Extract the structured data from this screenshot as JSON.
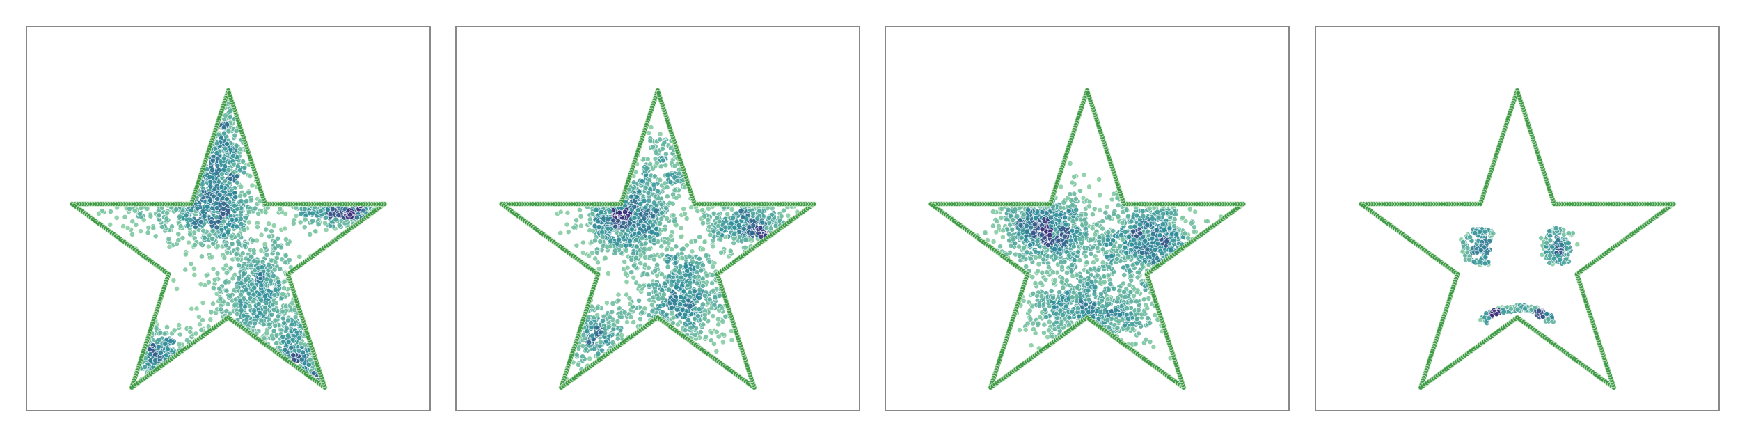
{
  "chart_data": [
    {
      "type": "scatter",
      "panel": 1,
      "title": "",
      "xlabel": "",
      "ylabel": "",
      "grid": false,
      "legend": "none",
      "outline": "star",
      "colors": {
        "outline": "#3f9a45",
        "density_low": "#8fd3a4",
        "density_mid": "#2f8e9a",
        "density_high": "#3b2d7a"
      },
      "clusters": [
        {
          "x": -0.05,
          "y": 0.62,
          "sx": 0.1,
          "sy": 0.32,
          "n": 520
        },
        {
          "x": -0.18,
          "y": 0.28,
          "sx": 0.22,
          "sy": 0.1,
          "n": 420
        },
        {
          "x": 0.72,
          "y": 0.3,
          "sx": 0.16,
          "sy": 0.06,
          "n": 300
        },
        {
          "x": 0.18,
          "y": -0.25,
          "sx": 0.16,
          "sy": 0.2,
          "n": 560
        },
        {
          "x": 0.42,
          "y": -0.72,
          "sx": 0.1,
          "sy": 0.16,
          "n": 220
        },
        {
          "x": -0.45,
          "y": -0.62,
          "sx": 0.14,
          "sy": 0.1,
          "n": 200
        }
      ]
    },
    {
      "type": "scatter",
      "panel": 2,
      "title": "",
      "xlabel": "",
      "ylabel": "",
      "grid": false,
      "legend": "none",
      "outline": "star",
      "colors": {
        "outline": "#3f9a45",
        "density_low": "#8fd3a4",
        "density_mid": "#2f8e9a",
        "density_high": "#3b2d7a"
      },
      "clusters": [
        {
          "x": -0.18,
          "y": 0.22,
          "sx": 0.14,
          "sy": 0.12,
          "n": 620
        },
        {
          "x": 0.55,
          "y": 0.18,
          "sx": 0.14,
          "sy": 0.08,
          "n": 320
        },
        {
          "x": 0.15,
          "y": -0.25,
          "sx": 0.14,
          "sy": 0.16,
          "n": 520
        },
        {
          "x": -0.38,
          "y": -0.48,
          "sx": 0.16,
          "sy": 0.1,
          "n": 220
        },
        {
          "x": 0.05,
          "y": 0.55,
          "sx": 0.08,
          "sy": 0.14,
          "n": 140
        }
      ]
    },
    {
      "type": "scatter",
      "panel": 3,
      "title": "",
      "xlabel": "",
      "ylabel": "",
      "grid": false,
      "legend": "none",
      "outline": "star",
      "colors": {
        "outline": "#3f9a45",
        "density_low": "#8fd3a4",
        "density_mid": "#2f8e9a",
        "density_high": "#3b2d7a"
      },
      "clusters": [
        {
          "x": -0.25,
          "y": 0.15,
          "sx": 0.14,
          "sy": 0.1,
          "n": 600
        },
        {
          "x": 0.38,
          "y": 0.1,
          "sx": 0.14,
          "sy": 0.12,
          "n": 520
        },
        {
          "x": 0.05,
          "y": -0.35,
          "sx": 0.22,
          "sy": 0.12,
          "n": 540
        },
        {
          "x": 0.0,
          "y": 0.0,
          "sx": 0.32,
          "sy": 0.24,
          "n": 320
        }
      ]
    },
    {
      "type": "scatter",
      "panel": 4,
      "title": "",
      "xlabel": "",
      "ylabel": "",
      "grid": false,
      "legend": "none",
      "outline": "star",
      "colors": {
        "outline": "#3f9a45",
        "density_low": "#8fd3a4",
        "density_mid": "#2f8e9a",
        "density_high": "#3b2d7a"
      },
      "face": {
        "left_eye": {
          "x": -0.22,
          "y": 0.05,
          "r": 0.05,
          "ring_r": 0.1,
          "n": 140
        },
        "right_eye": {
          "x": 0.27,
          "y": 0.05,
          "r": 0.05,
          "ring_r": 0.1,
          "n": 140
        },
        "smile": {
          "x": 0.0,
          "y": -0.35,
          "rx": 0.22,
          "ry": 0.12,
          "n": 160
        }
      }
    }
  ]
}
